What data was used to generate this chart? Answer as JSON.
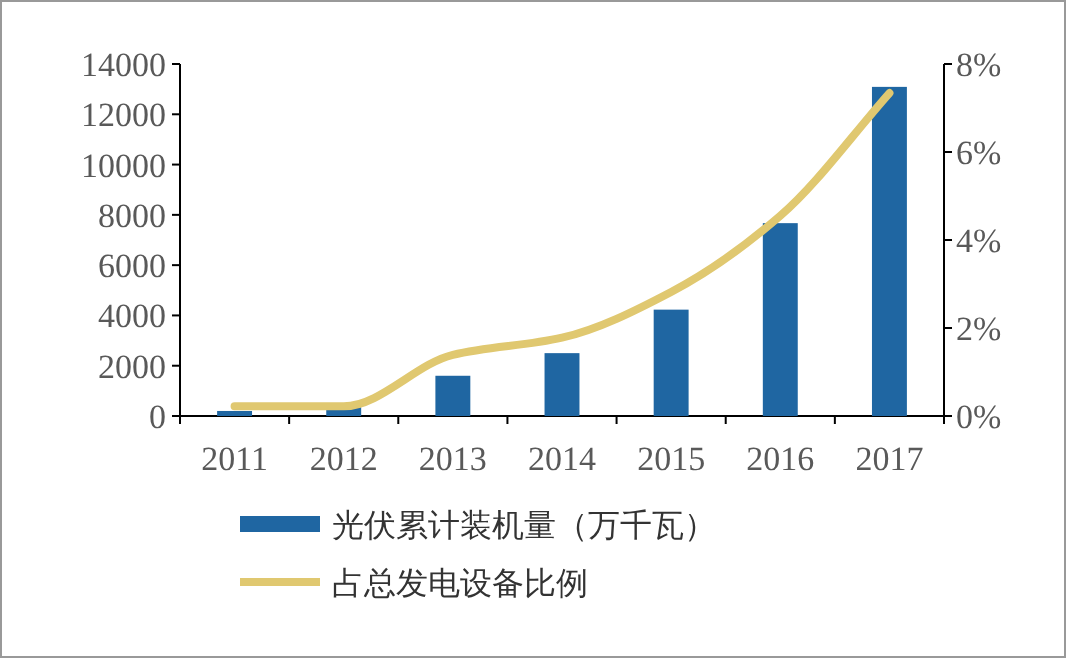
{
  "chart_data": {
    "type": "bar",
    "categories": [
      "2011",
      "2012",
      "2013",
      "2014",
      "2015",
      "2016",
      "2017"
    ],
    "series": [
      {
        "name": "光伏累计装机量（万千瓦）",
        "color": "#1f66a2",
        "values": [
          200,
          350,
          1600,
          2500,
          4230,
          7670,
          13090
        ]
      },
      {
        "name": "占总发电设备比例",
        "type": "line",
        "axis": "y2",
        "color": "#e0c870",
        "values": [
          0.22,
          0.22,
          1.39,
          1.78,
          2.82,
          4.55,
          7.34
        ]
      }
    ],
    "ylim": [
      0,
      14000
    ],
    "yticks": [
      0,
      2000,
      4000,
      6000,
      8000,
      10000,
      12000,
      14000
    ],
    "y2lim": [
      0,
      8
    ],
    "y2ticks": [
      {
        "value": 0,
        "label": "0%"
      },
      {
        "value": 2,
        "label": "2%"
      },
      {
        "value": 4,
        "label": "4%"
      },
      {
        "value": 6,
        "label": "6%"
      },
      {
        "value": 8,
        "label": "8%"
      }
    ],
    "legend": "bottom",
    "grid": false,
    "marker": "none",
    "line_style": "solid"
  }
}
